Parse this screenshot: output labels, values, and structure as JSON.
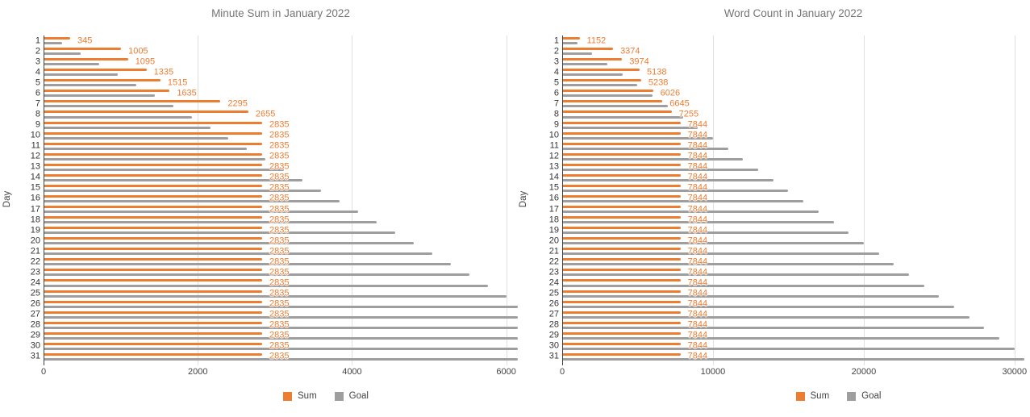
{
  "legend": {
    "items": [
      {
        "label": "Sum"
      },
      {
        "label": "Goal"
      }
    ]
  },
  "colors": {
    "sum": "#ED7D31",
    "goal": "#9E9E9E",
    "gridline": "#E0E0E0",
    "axis_baseline": "#424242",
    "title_text": "#757575",
    "tick_text": "#444444"
  },
  "chart_data": [
    {
      "type": "bar",
      "orientation": "horizontal",
      "title": "Minute Sum in January 2022",
      "xlabel": "",
      "ylabel": "Day",
      "grid": "vertical",
      "legend_position": "bottom",
      "annotated_series": "Sum",
      "categories": [
        1,
        2,
        3,
        4,
        5,
        6,
        7,
        8,
        9,
        10,
        11,
        12,
        13,
        14,
        15,
        16,
        17,
        18,
        19,
        20,
        21,
        22,
        23,
        24,
        25,
        26,
        27,
        28,
        29,
        30,
        31
      ],
      "x_ticks": [
        0,
        2000,
        4000,
        6000
      ],
      "xlim": [
        0,
        6150
      ],
      "series": [
        {
          "name": "Sum",
          "color": "#ED7D31",
          "values": [
            345,
            1005,
            1095,
            1335,
            1515,
            1635,
            2295,
            2655,
            2835,
            2835,
            2835,
            2835,
            2835,
            2835,
            2835,
            2835,
            2835,
            2835,
            2835,
            2835,
            2835,
            2835,
            2835,
            2835,
            2835,
            2835,
            2835,
            2835,
            2835,
            2835,
            2835
          ]
        },
        {
          "name": "Goal",
          "color": "#9E9E9E",
          "values": [
            240,
            480,
            720,
            960,
            1200,
            1440,
            1680,
            1920,
            2160,
            2400,
            2640,
            2880,
            3120,
            3360,
            3600,
            3840,
            4080,
            4320,
            4560,
            4800,
            5040,
            5280,
            5520,
            5760,
            6000,
            6240,
            6480,
            6720,
            6960,
            7200,
            7440
          ]
        }
      ]
    },
    {
      "type": "bar",
      "orientation": "horizontal",
      "title": "Word Count in January 2022",
      "xlabel": "",
      "ylabel": "Day",
      "grid": "vertical",
      "legend_position": "bottom",
      "annotated_series": "Sum",
      "categories": [
        1,
        2,
        3,
        4,
        5,
        6,
        7,
        8,
        9,
        10,
        11,
        12,
        13,
        14,
        15,
        16,
        17,
        18,
        19,
        20,
        21,
        22,
        23,
        24,
        25,
        26,
        27,
        28,
        29,
        30,
        31
      ],
      "x_ticks": [
        0,
        10000,
        20000,
        30000
      ],
      "xlim": [
        0,
        30650
      ],
      "series": [
        {
          "name": "Sum",
          "color": "#ED7D31",
          "values": [
            1152,
            3374,
            3974,
            5138,
            5238,
            6026,
            6645,
            7255,
            7844,
            7844,
            7844,
            7844,
            7844,
            7844,
            7844,
            7844,
            7844,
            7844,
            7844,
            7844,
            7844,
            7844,
            7844,
            7844,
            7844,
            7844,
            7844,
            7844,
            7844,
            7844,
            7844
          ]
        },
        {
          "name": "Goal",
          "color": "#9E9E9E",
          "values": [
            1000,
            2000,
            3000,
            4000,
            5000,
            6000,
            7000,
            8000,
            9000,
            10000,
            11000,
            12000,
            13000,
            14000,
            15000,
            16000,
            17000,
            18000,
            19000,
            20000,
            21000,
            22000,
            23000,
            24000,
            25000,
            26000,
            27000,
            28000,
            29000,
            30000,
            31000
          ]
        }
      ]
    }
  ]
}
